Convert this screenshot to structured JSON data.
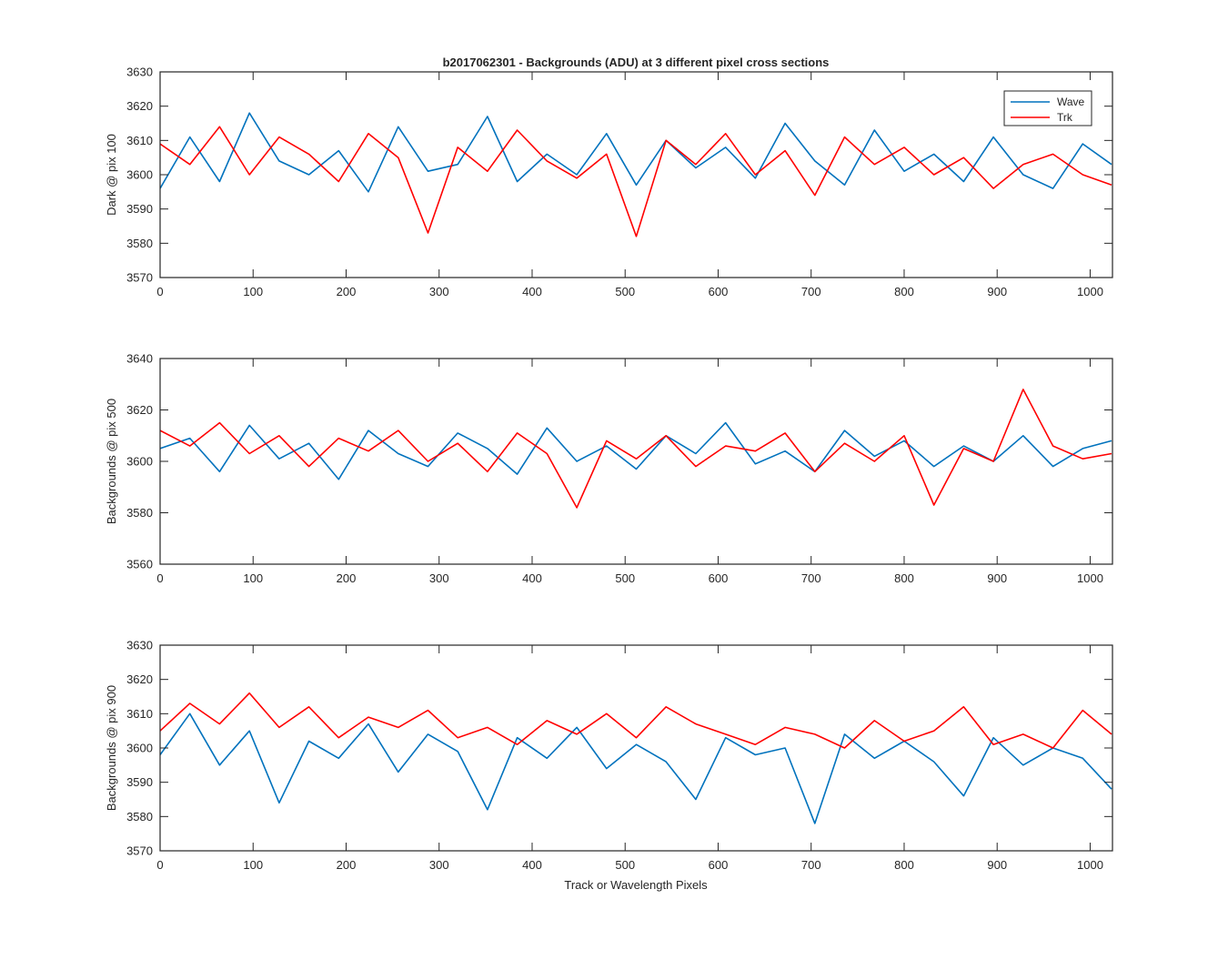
{
  "chart_data": {
    "type": "line",
    "title": "b2017062301 - Backgrounds (ADU) at 3 different pixel cross sections",
    "xlabel": "Track or Wavelength Pixels",
    "colors": {
      "Wave": "#0072BD",
      "Trk": "#FF0000",
      "axis": "#262626"
    },
    "legend": {
      "position": "top-right",
      "entries": [
        "Wave",
        "Trk"
      ]
    },
    "grid": false,
    "panels": [
      {
        "ylabel": "Dark @ pix 100",
        "xlim": [
          0,
          1024
        ],
        "ylim": [
          3570,
          3630
        ],
        "xticks": [
          0,
          100,
          200,
          300,
          400,
          500,
          600,
          700,
          800,
          900,
          1000
        ],
        "yticks": [
          3570,
          3580,
          3590,
          3600,
          3610,
          3620,
          3630
        ],
        "series": [
          {
            "name": "Wave",
            "x": [
              0,
              32,
              64,
              96,
              128,
              160,
              192,
              224,
              256,
              288,
              320,
              352,
              384,
              416,
              448,
              480,
              512,
              544,
              576,
              608,
              640,
              672,
              704,
              736,
              768,
              800,
              832,
              864,
              896,
              928,
              960,
              992,
              1023
            ],
            "y": [
              3596,
              3611,
              3598,
              3618,
              3604,
              3600,
              3607,
              3595,
              3614,
              3601,
              3603,
              3617,
              3598,
              3606,
              3600,
              3612,
              3597,
              3610,
              3602,
              3608,
              3599,
              3615,
              3604,
              3597,
              3613,
              3601,
              3606,
              3598,
              3611,
              3600,
              3596,
              3609,
              3603
            ]
          },
          {
            "name": "Trk",
            "x": [
              0,
              32,
              64,
              96,
              128,
              160,
              192,
              224,
              256,
              288,
              320,
              352,
              384,
              416,
              448,
              480,
              512,
              544,
              576,
              608,
              640,
              672,
              704,
              736,
              768,
              800,
              832,
              864,
              896,
              928,
              960,
              992,
              1023
            ],
            "y": [
              3609,
              3603,
              3614,
              3600,
              3611,
              3606,
              3598,
              3612,
              3605,
              3583,
              3608,
              3601,
              3613,
              3604,
              3599,
              3606,
              3582,
              3610,
              3603,
              3612,
              3600,
              3607,
              3594,
              3611,
              3603,
              3608,
              3600,
              3605,
              3596,
              3603,
              3606,
              3600,
              3597
            ]
          }
        ]
      },
      {
        "ylabel": "Backgrounds @ pix 500",
        "xlim": [
          0,
          1024
        ],
        "ylim": [
          3560,
          3640
        ],
        "xticks": [
          0,
          100,
          200,
          300,
          400,
          500,
          600,
          700,
          800,
          900,
          1000
        ],
        "yticks": [
          3560,
          3580,
          3600,
          3620,
          3640
        ],
        "series": [
          {
            "name": "Wave",
            "x": [
              0,
              32,
              64,
              96,
              128,
              160,
              192,
              224,
              256,
              288,
              320,
              352,
              384,
              416,
              448,
              480,
              512,
              544,
              576,
              608,
              640,
              672,
              704,
              736,
              768,
              800,
              832,
              864,
              896,
              928,
              960,
              992,
              1023
            ],
            "y": [
              3605,
              3609,
              3596,
              3614,
              3601,
              3607,
              3593,
              3612,
              3603,
              3598,
              3611,
              3605,
              3595,
              3613,
              3600,
              3606,
              3597,
              3610,
              3603,
              3615,
              3599,
              3604,
              3596,
              3612,
              3602,
              3608,
              3598,
              3606,
              3600,
              3610,
              3598,
              3605,
              3608
            ]
          },
          {
            "name": "Trk",
            "x": [
              0,
              32,
              64,
              96,
              128,
              160,
              192,
              224,
              256,
              288,
              320,
              352,
              384,
              416,
              448,
              480,
              512,
              544,
              576,
              608,
              640,
              672,
              704,
              736,
              768,
              800,
              832,
              864,
              896,
              928,
              960,
              992,
              1023
            ],
            "y": [
              3612,
              3606,
              3615,
              3603,
              3610,
              3598,
              3609,
              3604,
              3612,
              3600,
              3607,
              3596,
              3611,
              3603,
              3582,
              3608,
              3601,
              3610,
              3598,
              3606,
              3604,
              3611,
              3596,
              3607,
              3600,
              3610,
              3583,
              3605,
              3600,
              3628,
              3606,
              3601,
              3603
            ]
          }
        ]
      },
      {
        "ylabel": "Backgrounds @ pix 900",
        "xlim": [
          0,
          1024
        ],
        "ylim": [
          3570,
          3630
        ],
        "xticks": [
          0,
          100,
          200,
          300,
          400,
          500,
          600,
          700,
          800,
          900,
          1000
        ],
        "yticks": [
          3570,
          3580,
          3590,
          3600,
          3610,
          3620,
          3630
        ],
        "series": [
          {
            "name": "Wave",
            "x": [
              0,
              32,
              64,
              96,
              128,
              160,
              192,
              224,
              256,
              288,
              320,
              352,
              384,
              416,
              448,
              480,
              512,
              544,
              576,
              608,
              640,
              672,
              704,
              736,
              768,
              800,
              832,
              864,
              896,
              928,
              960,
              992,
              1023
            ],
            "y": [
              3598,
              3610,
              3595,
              3605,
              3584,
              3602,
              3597,
              3607,
              3593,
              3604,
              3599,
              3582,
              3603,
              3597,
              3606,
              3594,
              3601,
              3596,
              3585,
              3603,
              3598,
              3600,
              3578,
              3604,
              3597,
              3602,
              3596,
              3586,
              3603,
              3595,
              3600,
              3597,
              3588
            ]
          },
          {
            "name": "Trk",
            "x": [
              0,
              32,
              64,
              96,
              128,
              160,
              192,
              224,
              256,
              288,
              320,
              352,
              384,
              416,
              448,
              480,
              512,
              544,
              576,
              608,
              640,
              672,
              704,
              736,
              768,
              800,
              832,
              864,
              896,
              928,
              960,
              992,
              1023
            ],
            "y": [
              3605,
              3613,
              3607,
              3616,
              3606,
              3612,
              3603,
              3609,
              3606,
              3611,
              3603,
              3606,
              3601,
              3608,
              3604,
              3610,
              3603,
              3612,
              3607,
              3604,
              3601,
              3606,
              3604,
              3600,
              3608,
              3602,
              3605,
              3612,
              3601,
              3604,
              3600,
              3611,
              3604
            ]
          }
        ]
      }
    ]
  }
}
